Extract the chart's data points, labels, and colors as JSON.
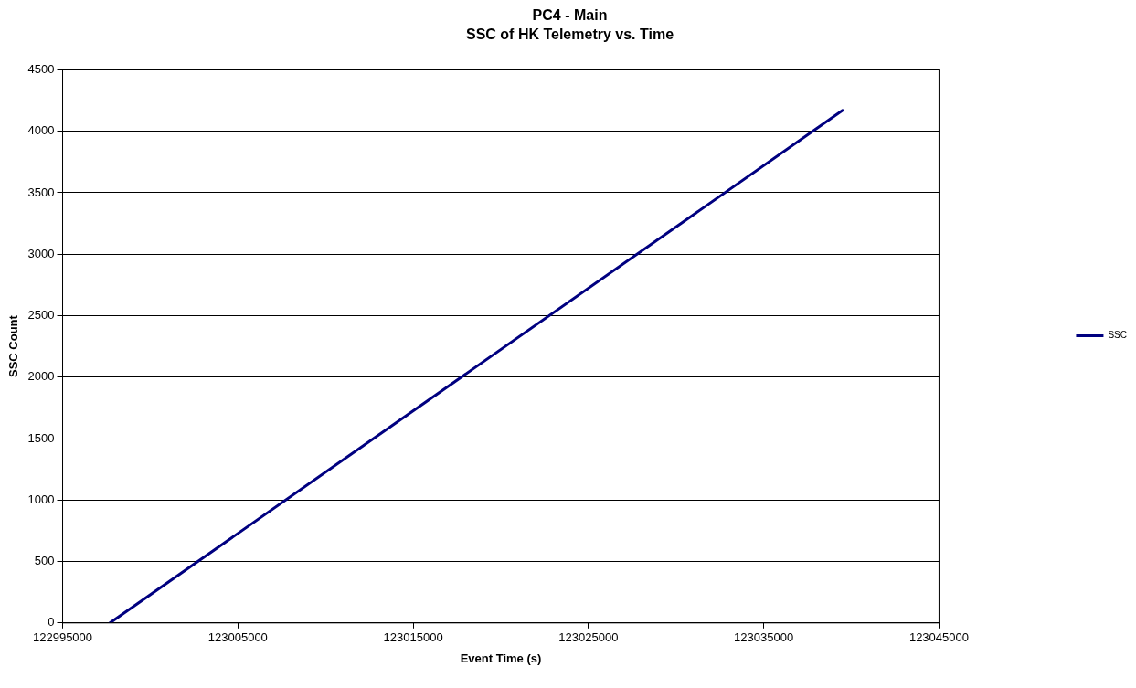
{
  "chart_data": {
    "type": "line",
    "title": "PC4 - Main",
    "subtitle": "SSC of HK Telemetry vs. Time",
    "xlabel": "Event Time (s)",
    "ylabel": "SSC Count",
    "x": [
      122997700,
      123039500
    ],
    "series": [
      {
        "name": "SSC",
        "color": "#000080",
        "values": [
          0,
          4170
        ]
      }
    ],
    "xlim": [
      122995000,
      123045000
    ],
    "xticks": [
      122995000,
      123005000,
      123015000,
      123025000,
      123035000,
      123045000
    ],
    "ylim": [
      0,
      4500
    ],
    "yticks": [
      0,
      500,
      1000,
      1500,
      2000,
      2500,
      3000,
      3500,
      4000,
      4500
    ],
    "grid": "y",
    "legend": "right",
    "marker": "none",
    "line_style": "solid"
  }
}
